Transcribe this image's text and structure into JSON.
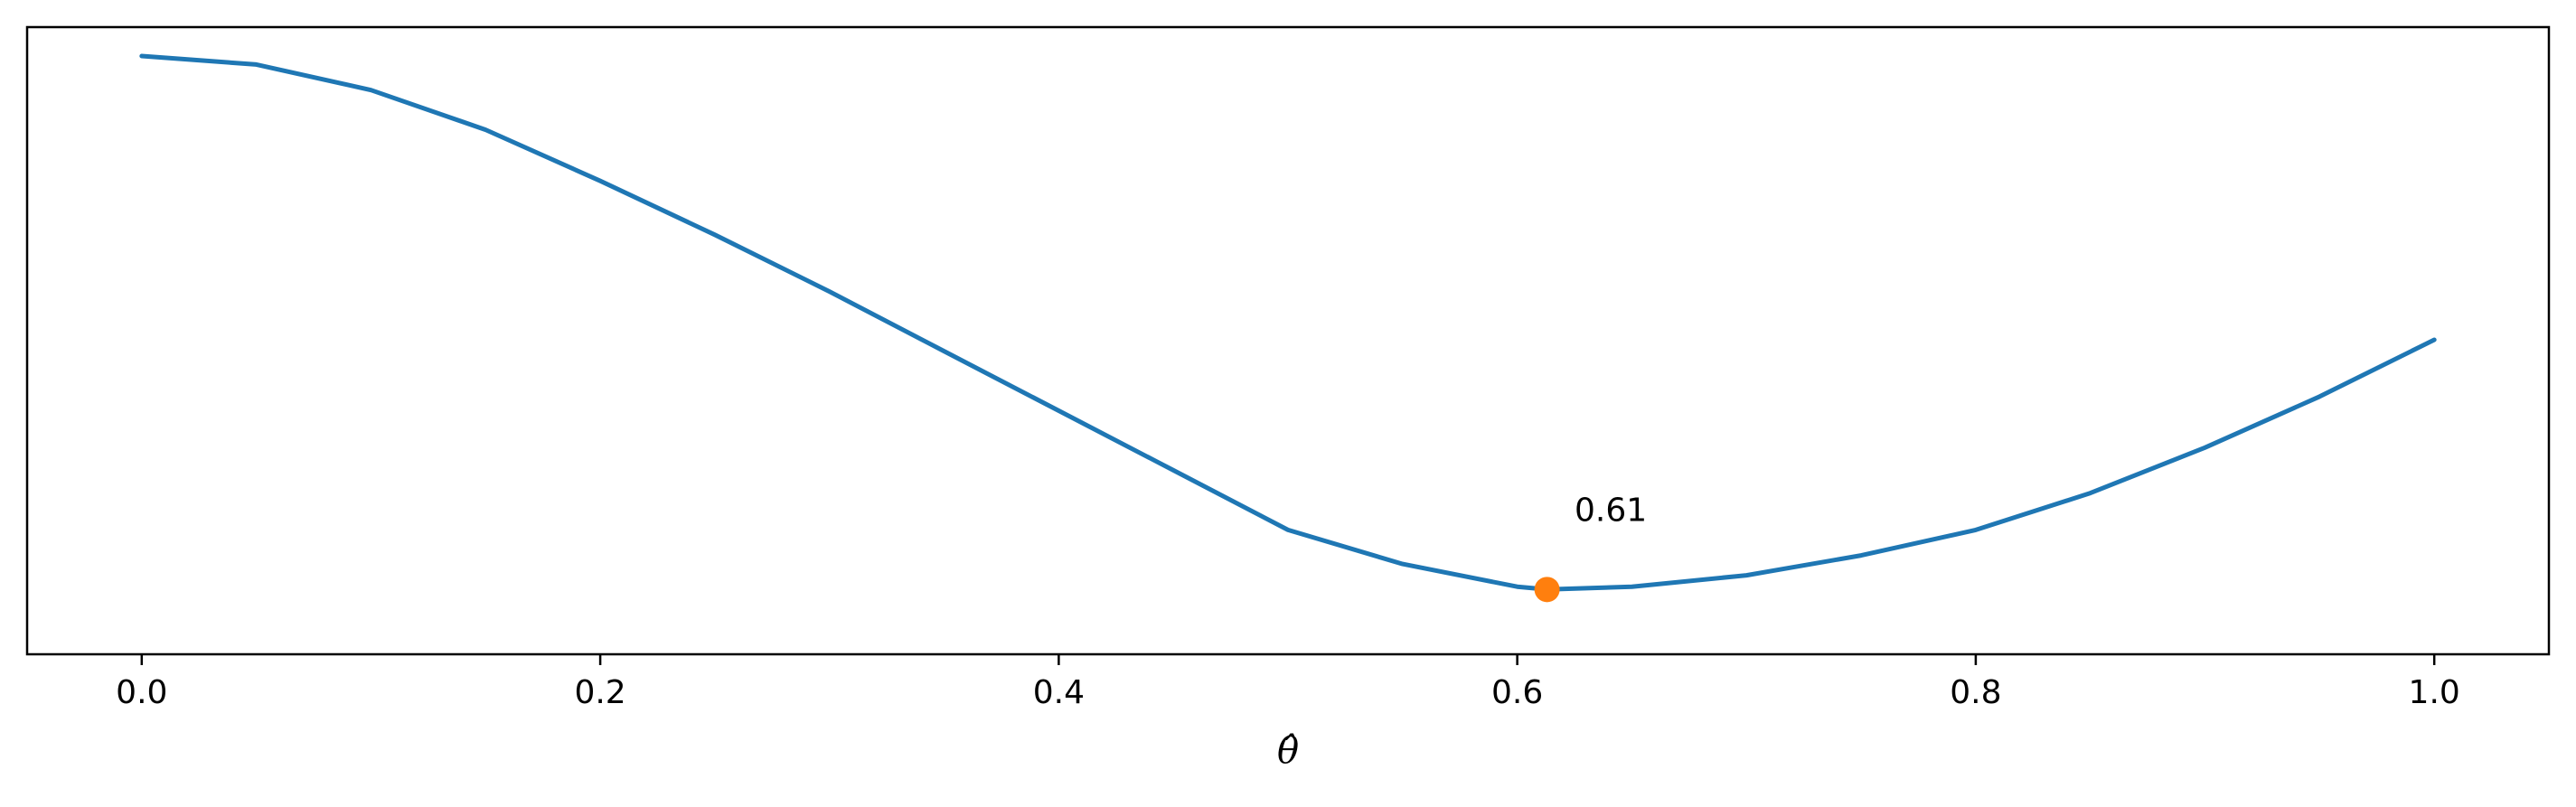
{
  "chart_data": {
    "type": "line",
    "title": "",
    "xlabel": "θ̂",
    "ylabel": "",
    "xlim": [
      -0.05,
      1.05
    ],
    "ylim": [
      0.0,
      1.0
    ],
    "xticks": [
      "0.0",
      "0.2",
      "0.4",
      "0.6",
      "0.8",
      "1.0"
    ],
    "yticks": [],
    "grid": false,
    "series": [
      {
        "color": "#1f77b4",
        "x": [
          0.0,
          0.05,
          0.1,
          0.15,
          0.2,
          0.25,
          0.3,
          0.35,
          0.4,
          0.45,
          0.5,
          0.55,
          0.6,
          0.613,
          0.65,
          0.7,
          0.75,
          0.8,
          0.85,
          0.9,
          0.95,
          1.0
        ],
        "y": [
          1.0,
          0.985,
          0.94,
          0.87,
          0.78,
          0.685,
          0.585,
          0.48,
          0.375,
          0.27,
          0.165,
          0.105,
          0.065,
          0.06,
          0.065,
          0.085,
          0.12,
          0.165,
          0.23,
          0.31,
          0.4,
          0.5
        ]
      }
    ],
    "marker": {
      "x": 0.613,
      "y": 0.06,
      "color": "#ff7f0e"
    },
    "annotations": [
      {
        "text": "0.61",
        "x": 0.625,
        "y": 0.2
      }
    ]
  }
}
